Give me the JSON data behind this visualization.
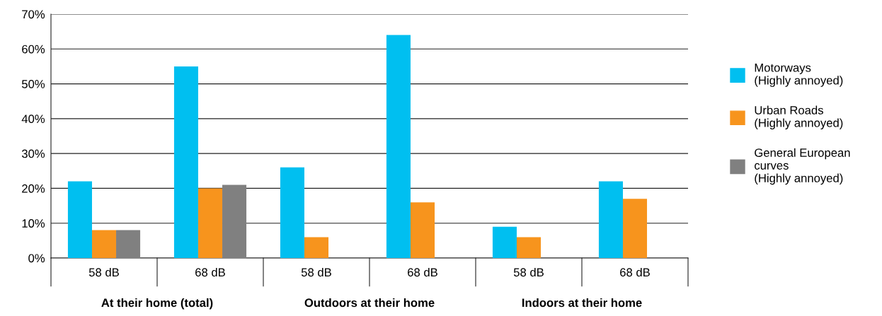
{
  "chart_data": {
    "type": "bar",
    "categories": [
      "58 dB",
      "68 dB",
      "58 dB",
      "68 dB",
      "58 dB",
      "68 dB"
    ],
    "series": [
      {
        "name": "Motorways\n(Highly annoyed)",
        "color": "#00bff0",
        "values": [
          22,
          55,
          26,
          64,
          9,
          22
        ]
      },
      {
        "name": "Urban Roads\n(Highly annoyed)",
        "color": "#f7941d",
        "values": [
          8,
          20,
          6,
          16,
          6,
          17
        ]
      },
      {
        "name": "General European\ncurves\n(Highly annoyed)",
        "color": "#808080",
        "values": [
          8,
          21,
          null,
          null,
          null,
          null
        ]
      }
    ],
    "ylim": [
      0,
      70
    ],
    "yticks": [
      {
        "value": 0,
        "label": "0%"
      },
      {
        "value": 10,
        "label": "10%"
      },
      {
        "value": 20,
        "label": "20%"
      },
      {
        "value": 30,
        "label": "30%"
      },
      {
        "value": 40,
        "label": "40%"
      },
      {
        "value": 50,
        "label": "50%"
      },
      {
        "value": 60,
        "label": "60%"
      },
      {
        "value": 70,
        "label": "70%"
      }
    ],
    "grid": "y",
    "legend": "right",
    "annotations": [
      "At their home (total)",
      "Outdoors at their home",
      "Indoors at their home"
    ]
  }
}
